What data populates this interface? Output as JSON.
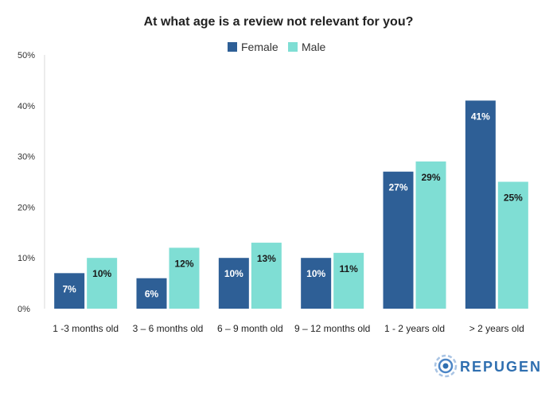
{
  "chart_data": {
    "type": "bar",
    "title": "At what age is a review not relevant for you?",
    "categories": [
      "1 -3 months old",
      "3 – 6 months old",
      "6 – 9 month old",
      "9 – 12 months old",
      "1 - 2 years old",
      "> 2 years old"
    ],
    "series": [
      {
        "name": "Female",
        "values": [
          7,
          6,
          10,
          10,
          27,
          41
        ],
        "labels": [
          "7%",
          "6%",
          "10%",
          "10%",
          "27%",
          "41%"
        ]
      },
      {
        "name": "Male",
        "values": [
          10,
          12,
          13,
          11,
          29,
          25
        ],
        "labels": [
          "10%",
          "12%",
          "13%",
          "11%",
          "29%",
          "25%"
        ]
      }
    ],
    "ylim": [
      0,
      50
    ],
    "yticks": [
      0,
      10,
      20,
      30,
      40,
      50
    ],
    "ytick_labels": [
      "0%",
      "10%",
      "20%",
      "30%",
      "40%",
      "50%"
    ],
    "legend_position": "top-center",
    "grid": false,
    "colors": {
      "Female": "#2e5f96",
      "Male": "#7fded4"
    },
    "label_colors": {
      "Female": "#ffffff",
      "Male": "#1a1a1a"
    }
  },
  "brand": {
    "name": "REPUGEN",
    "icon": "repugen-logo-icon"
  }
}
